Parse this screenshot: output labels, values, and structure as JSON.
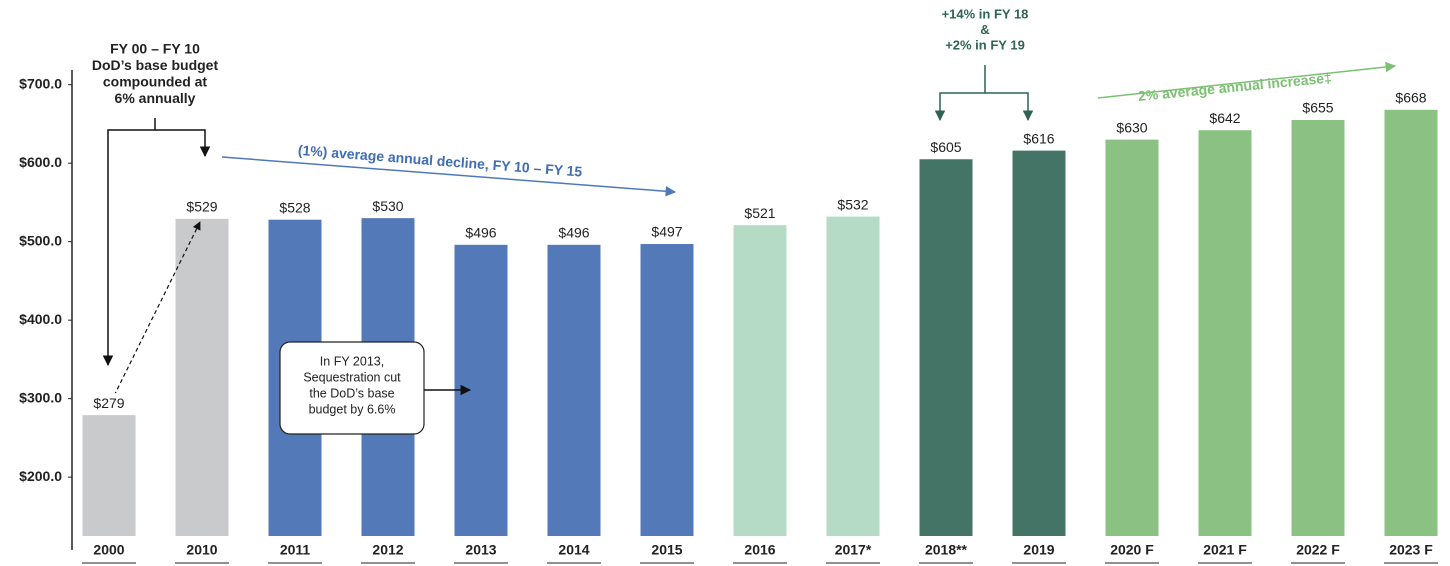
{
  "chart_data": {
    "type": "bar",
    "categories": [
      "2000",
      "2010",
      "2011",
      "2012",
      "2013",
      "2014",
      "2015",
      "2016",
      "2017*",
      "2018**",
      "2019",
      "2020 F",
      "2021 F",
      "2022 F",
      "2023 F"
    ],
    "values": [
      279,
      529,
      528,
      530,
      496,
      496,
      497,
      521,
      532,
      605,
      616,
      630,
      642,
      655,
      668
    ],
    "value_labels": [
      "$279",
      "$529",
      "$528",
      "$530",
      "$496",
      "$496",
      "$497",
      "$521",
      "$532",
      "$605",
      "$616",
      "$630",
      "$642",
      "$655",
      "$668"
    ],
    "colors": [
      "#c8cacc",
      "#c8cacc",
      "#5479b8",
      "#5479b8",
      "#5479b8",
      "#5479b8",
      "#5479b8",
      "#b5dbc6",
      "#b5dbc6",
      "#447465",
      "#447465",
      "#8bc283",
      "#8bc283",
      "#8bc283",
      "#8bc283"
    ],
    "ylim": [
      125,
      720
    ],
    "yticks": [
      {
        "value": 200,
        "label": "$200.0"
      },
      {
        "value": 300,
        "label": "$300.0"
      },
      {
        "value": 400,
        "label": "$400.0"
      },
      {
        "value": 500,
        "label": "$500.0"
      },
      {
        "value": 600,
        "label": "$600.0"
      },
      {
        "value": 700,
        "label": "$700.0"
      }
    ],
    "grid": false,
    "annotations": [
      {
        "lines": [
          "FY 00 – FY 10",
          "DoD’s base budget",
          "compounded at",
          "6% annually"
        ]
      },
      {
        "lines": [
          "(1%) average annual decline, FY 10 – FY 15"
        ]
      },
      {
        "lines": [
          "+14% in FY 18",
          "&",
          "+2% in FY 19"
        ]
      },
      {
        "lines": [
          "2% average annual increase‡"
        ]
      },
      {
        "lines": [
          "In FY 2013,",
          "Sequestration cut",
          "the DoD’s base",
          "budget by 6.6%"
        ]
      }
    ]
  }
}
